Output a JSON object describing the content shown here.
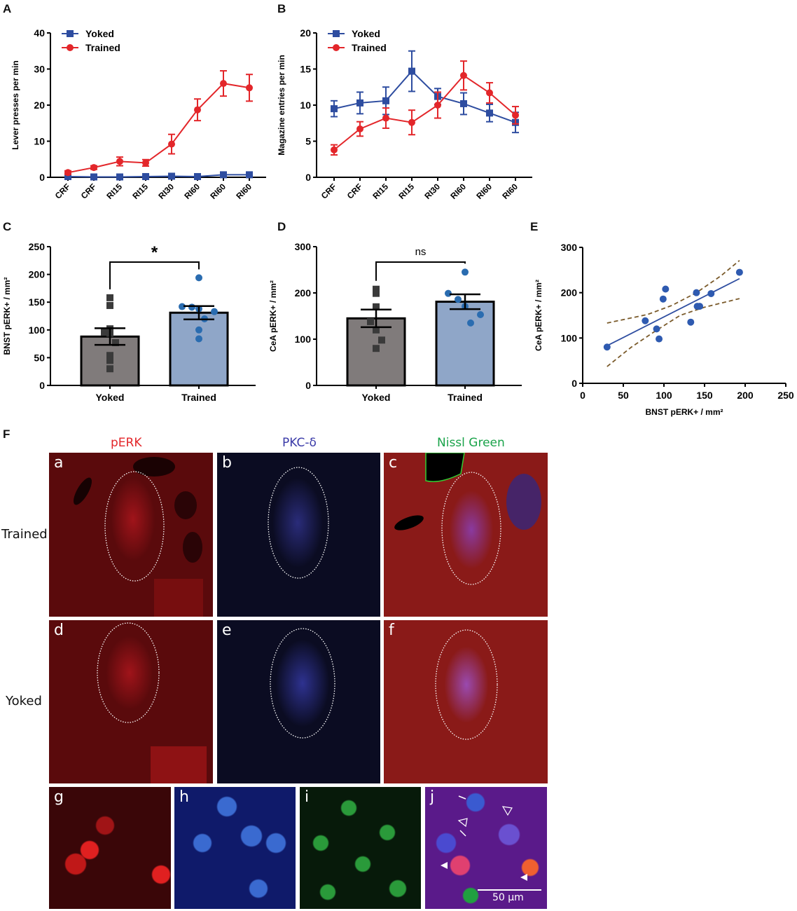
{
  "panel_labels": {
    "A": "A",
    "B": "B",
    "C": "C",
    "D": "D",
    "E": "E",
    "F": "F"
  },
  "colors": {
    "yoked": "#2e4da0",
    "trained": "#e3262a",
    "bar_yoked": "#807b7b",
    "bar_trained": "#8fa6c8",
    "dot_trained": "#2a6cb0",
    "dot_yoked": "#3a3a3a",
    "ci": "#7a5a2a"
  },
  "chart_data": [
    {
      "id": "A",
      "type": "line",
      "title": "",
      "ylabel": "Lever presses per min",
      "xlabel": "",
      "categories": [
        "CRF",
        "CRF",
        "RI15",
        "RI15",
        "RI30",
        "RI60",
        "RI60",
        "RI60"
      ],
      "ylim": [
        0,
        40
      ],
      "yticks": [
        0,
        10,
        20,
        30,
        40
      ],
      "legend": {
        "position": "top-left"
      },
      "series": [
        {
          "name": "Yoked",
          "marker": "square",
          "values": [
            0.2,
            0.1,
            0.1,
            0.2,
            0.3,
            0.2,
            0.7,
            0.7
          ],
          "err": [
            0.2,
            0.1,
            0.1,
            0.1,
            0.2,
            0.1,
            0.3,
            0.3
          ]
        },
        {
          "name": "Trained",
          "marker": "circle",
          "values": [
            1.3,
            2.7,
            4.4,
            4.0,
            9.2,
            18.7,
            26.0,
            24.8
          ],
          "err": [
            0.5,
            0.5,
            1.2,
            0.9,
            2.7,
            3.0,
            3.5,
            3.7
          ]
        }
      ]
    },
    {
      "id": "B",
      "type": "line",
      "title": "",
      "ylabel": "Magazine entries per min",
      "xlabel": "",
      "categories": [
        "CRF",
        "CRF",
        "RI15",
        "RI15",
        "RI30",
        "RI60",
        "RI60",
        "RI60"
      ],
      "ylim": [
        0,
        20
      ],
      "yticks": [
        0,
        5,
        10,
        15,
        20
      ],
      "legend": {
        "position": "top-left"
      },
      "series": [
        {
          "name": "Yoked",
          "marker": "square",
          "values": [
            9.5,
            10.3,
            10.6,
            14.7,
            11.2,
            10.2,
            8.9,
            7.6
          ],
          "err": [
            1.1,
            1.5,
            1.9,
            2.8,
            1.1,
            1.5,
            1.2,
            1.4
          ]
        },
        {
          "name": "Trained",
          "marker": "circle",
          "values": [
            3.8,
            6.7,
            8.2,
            7.6,
            10.0,
            14.1,
            11.7,
            8.6
          ],
          "err": [
            0.7,
            1.0,
            1.4,
            1.7,
            1.8,
            2.0,
            1.4,
            1.2
          ]
        }
      ]
    },
    {
      "id": "C",
      "type": "bar",
      "title": "",
      "ylabel": "BNST pERK+ / mm²",
      "xlabel": "",
      "categories": [
        "Yoked",
        "Trained"
      ],
      "values": [
        88,
        131
      ],
      "sem": [
        15,
        12
      ],
      "ylim": [
        0,
        250
      ],
      "yticks": [
        0,
        50,
        100,
        150,
        200,
        250
      ],
      "significance": "*",
      "points": {
        "Yoked": [
          158,
          144,
          102,
          96,
          94,
          77,
          54,
          45,
          30
        ],
        "Trained": [
          194,
          142,
          141,
          138,
          133,
          120,
          100,
          84
        ]
      }
    },
    {
      "id": "D",
      "type": "bar",
      "title": "",
      "ylabel": "CeA pERK+ / mm²",
      "xlabel": "",
      "categories": [
        "Yoked",
        "Trained"
      ],
      "values": [
        145,
        181
      ],
      "sem": [
        19,
        16
      ],
      "ylim": [
        0,
        300
      ],
      "yticks": [
        0,
        100,
        200,
        300
      ],
      "significance": "ns",
      "points": {
        "Yoked": [
          208,
          199,
          170,
          138,
          120,
          98,
          80
        ],
        "Trained": [
          245,
          199,
          186,
          171,
          153,
          135
        ]
      }
    },
    {
      "id": "E",
      "type": "scatter",
      "title": "",
      "xlabel": "BNST pERK+ / mm²",
      "ylabel": "CeA pERK+ / mm²",
      "xlim": [
        0,
        250
      ],
      "ylim": [
        0,
        300
      ],
      "xticks": [
        0,
        50,
        100,
        150,
        200,
        250
      ],
      "yticks": [
        0,
        100,
        200,
        300
      ],
      "points": [
        [
          30,
          80
        ],
        [
          77,
          138
        ],
        [
          91,
          120
        ],
        [
          94,
          98
        ],
        [
          99,
          186
        ],
        [
          102,
          208
        ],
        [
          133,
          135
        ],
        [
          140,
          200
        ],
        [
          141,
          170
        ],
        [
          144,
          170
        ],
        [
          158,
          198
        ],
        [
          193,
          245
        ]
      ],
      "fit": {
        "x": [
          30,
          193
        ],
        "y": [
          83,
          231
        ]
      },
      "ci_upper": {
        "x": [
          30,
          80,
          110,
          140,
          170,
          193
        ],
        "y": [
          133,
          152,
          172,
          200,
          237,
          271
        ]
      },
      "ci_lower": {
        "x": [
          30,
          60,
          90,
          120,
          150,
          193
        ],
        "y": [
          37,
          80,
          116,
          150,
          168,
          187
        ]
      }
    }
  ],
  "micro": {
    "columns": [
      "pERK",
      "PKC-δ",
      "Nissl Green"
    ],
    "column_colors": [
      "#e3262a",
      "#3a3aa8",
      "#1aa34a"
    ],
    "rows": [
      "Trained",
      "Yoked"
    ],
    "panels": [
      "a",
      "b",
      "c",
      "d",
      "e",
      "f",
      "g",
      "h",
      "i",
      "j"
    ],
    "scale_bar": "50 µm"
  }
}
